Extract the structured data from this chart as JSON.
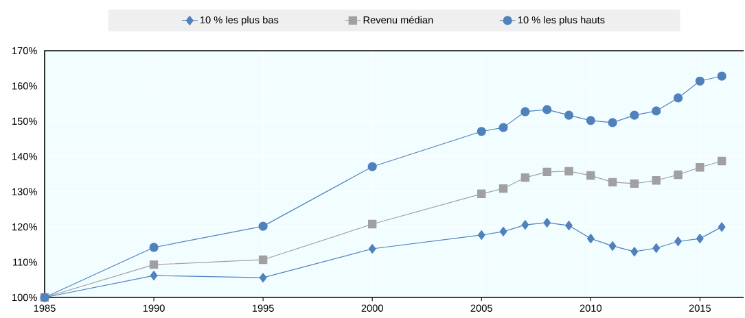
{
  "chart_data": {
    "type": "line",
    "x": [
      1985,
      1990,
      1995,
      2000,
      2005,
      2006,
      2007,
      2008,
      2009,
      2010,
      2011,
      2012,
      2013,
      2014,
      2015,
      2016
    ],
    "series": [
      {
        "name": "10 % les plus bas",
        "color": "#4f81bd",
        "marker": "diamond",
        "values": [
          100,
          106.2,
          105.6,
          113.8,
          117.7,
          118.7,
          120.6,
          121.2,
          120.4,
          116.7,
          114.6,
          113.0,
          114.0,
          115.9,
          116.7,
          120.0
        ]
      },
      {
        "name": "Revenu médian",
        "color": "#a0a0a0",
        "marker": "square",
        "values": [
          100,
          109.3,
          110.7,
          120.8,
          129.4,
          130.9,
          134.0,
          135.6,
          135.8,
          134.6,
          132.7,
          132.3,
          133.2,
          134.8,
          136.9,
          138.7
        ]
      },
      {
        "name": "10 % les plus hauts",
        "color": "#4f81bd",
        "marker": "circle",
        "values": [
          100,
          114.2,
          120.2,
          137.1,
          147.1,
          148.2,
          152.7,
          153.3,
          151.7,
          150.2,
          149.6,
          151.7,
          152.9,
          156.6,
          161.4,
          162.8
        ]
      }
    ],
    "xlim": [
      1985,
      2017
    ],
    "xticks": [
      1985,
      1990,
      1995,
      2000,
      2005,
      2010,
      2015
    ],
    "ylim": [
      100,
      170
    ],
    "yticks": [
      {
        "value": 100,
        "label": "100%"
      },
      {
        "value": 110,
        "label": "110%"
      },
      {
        "value": 120,
        "label": "120%"
      },
      {
        "value": 130,
        "label": "130%"
      },
      {
        "value": 140,
        "label": "140%"
      },
      {
        "value": 150,
        "label": "150%"
      },
      {
        "value": 160,
        "label": "160%"
      },
      {
        "value": 170,
        "label": "170%"
      }
    ],
    "grid": true,
    "legend": "top",
    "line_style": "solid"
  }
}
